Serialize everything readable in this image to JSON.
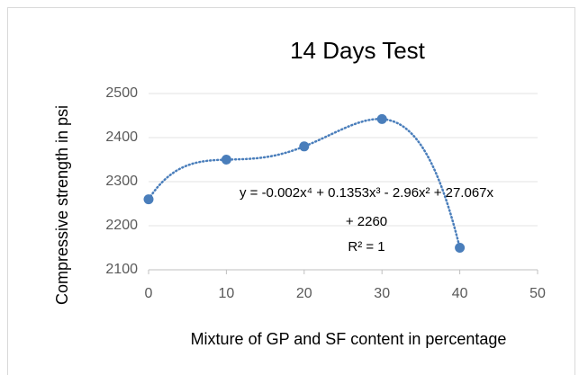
{
  "chart_data": {
    "type": "scatter",
    "title": "14 Days Test",
    "x_label": "Mixture of GP and SF content in percentage",
    "y_label": "Compressive strength in psi",
    "x": [
      0,
      10,
      20,
      30,
      40
    ],
    "values": [
      2260,
      2350,
      2380,
      2442,
      2150
    ],
    "color": "#4a7ebb",
    "trendline": "polynomial",
    "annotations": [
      "y = -0.002x⁴ + 0.1353x³ - 2.96x² + 27.067x",
      "+ 2260",
      "R² = 1"
    ],
    "xlim": [
      0,
      50
    ],
    "xticks": [
      0,
      10,
      20,
      30,
      40,
      50
    ],
    "ylim": [
      2100,
      2500
    ],
    "yticks": [
      2100,
      2200,
      2300,
      2400,
      2500
    ],
    "grid": true
  }
}
